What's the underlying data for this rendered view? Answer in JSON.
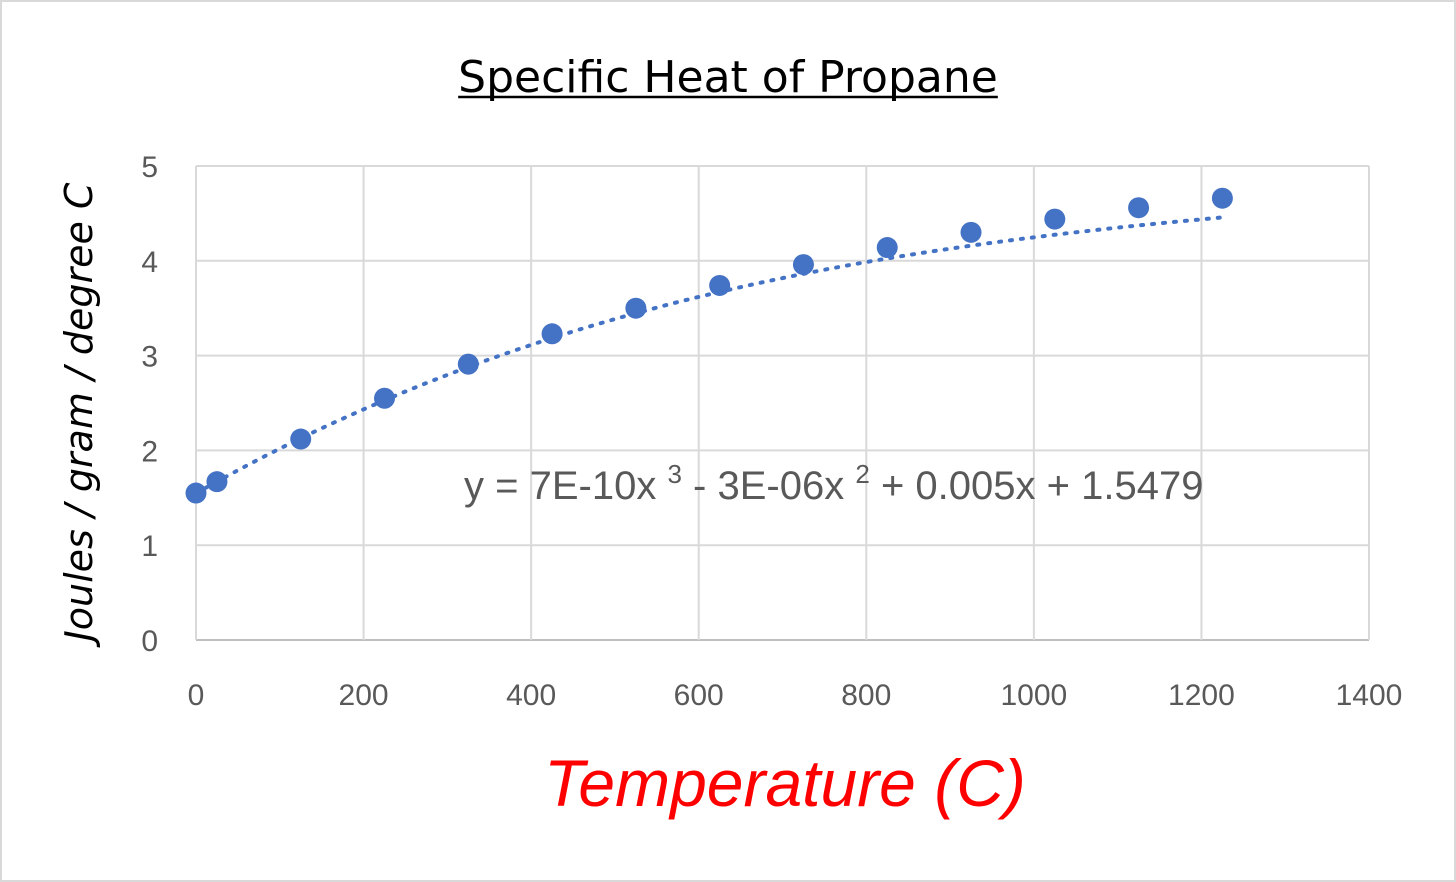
{
  "chart_data": {
    "type": "scatter",
    "title": "Specific Heat of Propane",
    "xlabel": "Temperature (C)",
    "ylabel": "Joules / gram / degree C",
    "xlim": [
      0,
      1400
    ],
    "ylim": [
      0,
      5
    ],
    "x_ticks": [
      "0",
      "200",
      "400",
      "600",
      "800",
      "1000",
      "1200",
      "1400"
    ],
    "y_ticks": [
      "0",
      "1",
      "2",
      "3",
      "4",
      "5"
    ],
    "grid": true,
    "legend": "none",
    "series": [
      {
        "x": [
          0,
          25,
          125,
          225,
          325,
          425,
          525,
          625,
          725,
          825,
          925,
          1025,
          1125,
          1225
        ],
        "y": [
          1.55,
          1.67,
          2.12,
          2.55,
          2.91,
          3.23,
          3.5,
          3.74,
          3.96,
          4.14,
          4.3,
          4.44,
          4.56,
          4.66
        ]
      }
    ],
    "trendline": {
      "type": "polynomial",
      "equation": "y = 7E-10x³ - 3E-06x² + 0.005x + 1.5479",
      "eq_parts": [
        "y = 7E-10x",
        "3",
        " - 3E-06x",
        "2",
        " + 0.005x + 1.5479"
      ],
      "coefficients": [
        7e-10,
        -3e-06,
        0.005,
        1.5479
      ]
    },
    "colors": {
      "marker": "#4472c4",
      "trendline": "#4472c4",
      "xlabel": "#ff0000"
    }
  }
}
